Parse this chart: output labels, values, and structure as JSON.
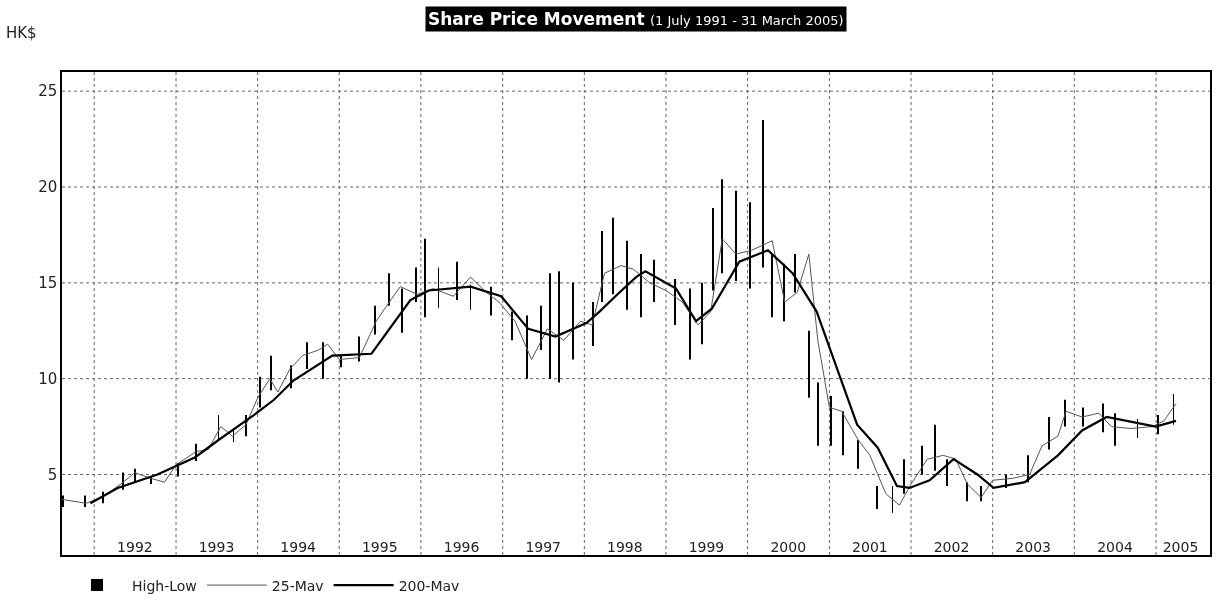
{
  "chart_data": {
    "type": "line",
    "title": "Share Price Movement",
    "subtitle": "(1 July 1991 - 31 March 2005)",
    "ylabel": "HK$",
    "xlim": [
      "1991-08-10",
      "2005-08-30"
    ],
    "ylim": [
      0.8,
      26
    ],
    "yticks": [
      5,
      10,
      15,
      20,
      25
    ],
    "xticks": [
      {
        "value": "1992-01-01",
        "label": null
      },
      {
        "value": "1992-07-01",
        "label": "1992"
      },
      {
        "value": "1993-01-01",
        "label": null
      },
      {
        "value": "1993-07-01",
        "label": "1993"
      },
      {
        "value": "1994-01-01",
        "label": null
      },
      {
        "value": "1994-07-01",
        "label": "1994"
      },
      {
        "value": "1995-01-01",
        "label": null
      },
      {
        "value": "1995-07-01",
        "label": "1995"
      },
      {
        "value": "1996-01-01",
        "label": null
      },
      {
        "value": "1996-07-01",
        "label": "1996"
      },
      {
        "value": "1997-01-01",
        "label": null
      },
      {
        "value": "1997-07-01",
        "label": "1997"
      },
      {
        "value": "1998-01-01",
        "label": null
      },
      {
        "value": "1998-07-01",
        "label": "1998"
      },
      {
        "value": "1999-01-01",
        "label": null
      },
      {
        "value": "1999-07-01",
        "label": "1999"
      },
      {
        "value": "2000-01-01",
        "label": null
      },
      {
        "value": "2000-07-01",
        "label": "2000"
      },
      {
        "value": "2001-01-01",
        "label": null
      },
      {
        "value": "2001-07-01",
        "label": "2001"
      },
      {
        "value": "2002-01-01",
        "label": null
      },
      {
        "value": "2002-07-01",
        "label": "2002"
      },
      {
        "value": "2003-01-01",
        "label": null
      },
      {
        "value": "2003-07-01",
        "label": "2003"
      },
      {
        "value": "2004-01-01",
        "label": null
      },
      {
        "value": "2004-07-01",
        "label": "2004"
      },
      {
        "value": "2005-01-01",
        "label": null
      },
      {
        "value": "2005-04-20",
        "label": "2005"
      }
    ],
    "grid": true,
    "legend": "bottom left",
    "series": [
      {
        "name": "High-Low",
        "type": "bar",
        "color": "#000000",
        "x": [
          "1991-08-15",
          "1991-11-20",
          "1992-02-10",
          "1992-05-10",
          "1992-07-01",
          "1992-09-10",
          "1993-01-10",
          "1993-04-01",
          "1993-07-10",
          "1993-09-15",
          "1993-11-10",
          "1994-01-10",
          "1994-03-01",
          "1994-06-01",
          "1994-08-10",
          "1994-10-20",
          "1995-01-10",
          "1995-04-01",
          "1995-06-10",
          "1995-08-10",
          "1995-10-10",
          "1995-12-10",
          "1996-01-20",
          "1996-03-20",
          "1996-06-10",
          "1996-08-10",
          "1996-11-10",
          "1997-02-10",
          "1997-04-20",
          "1997-06-20",
          "1997-08-01",
          "1997-09-10",
          "1997-11-10",
          "1998-02-10",
          "1998-03-20",
          "1998-05-10",
          "1998-07-10",
          "1998-09-10",
          "1998-11-10",
          "1999-02-10",
          "1999-04-20",
          "1999-06-10",
          "1999-08-01",
          "1999-09-10",
          "1999-11-10",
          "2000-01-10",
          "2000-03-10",
          "2000-04-20",
          "2000-06-10",
          "2000-08-01",
          "2000-10-01",
          "2000-11-10",
          "2001-01-10",
          "2001-03-01",
          "2001-05-10",
          "2001-08-01",
          "2001-10-10",
          "2001-12-01",
          "2002-02-20",
          "2002-04-20",
          "2002-06-10",
          "2002-09-10",
          "2002-11-10",
          "2003-03-01",
          "2003-06-10",
          "2003-09-10",
          "2003-11-20",
          "2004-02-10",
          "2004-05-10",
          "2004-07-01",
          "2004-10-10",
          "2005-01-10",
          "2005-03-20"
        ],
        "base": [
          3.3,
          3.3,
          3.5,
          4.2,
          4.6,
          4.5,
          4.9,
          5.7,
          6.8,
          6.7,
          7.0,
          8.5,
          9.4,
          9.5,
          10.5,
          10.0,
          10.6,
          10.9,
          12.3,
          13.8,
          12.4,
          14.0,
          13.2,
          13.7,
          14.1,
          13.6,
          13.3,
          12.0,
          10.0,
          11.5,
          10.0,
          9.8,
          11.0,
          11.7,
          14.0,
          14.4,
          13.6,
          13.2,
          14.0,
          12.8,
          11.0,
          11.8,
          14.6,
          15.5,
          15.1,
          14.7,
          15.8,
          13.2,
          13.0,
          14.5,
          9.0,
          6.5,
          6.5,
          6.0,
          5.3,
          3.2,
          3.0,
          4.0,
          5.0,
          5.2,
          4.4,
          3.6,
          3.6,
          4.3,
          4.6,
          6.3,
          7.5,
          7.5,
          7.2,
          6.5,
          6.9,
          7.1,
          7.6
        ],
        "values": [
          0.6,
          0.6,
          0.6,
          0.9,
          0.7,
          0.4,
          0.7,
          0.9,
          1.3,
          0.7,
          1.1,
          1.6,
          1.8,
          1.2,
          1.4,
          1.9,
          0.6,
          1.3,
          1.5,
          1.7,
          2.3,
          1.8,
          4.1,
          2.1,
          2.0,
          1.3,
          1.5,
          1.5,
          3.3,
          2.3,
          5.5,
          5.8,
          4.0,
          2.3,
          3.7,
          4.0,
          3.6,
          3.3,
          2.2,
          2.4,
          3.7,
          3.2,
          4.3,
          4.9,
          4.7,
          4.5,
          7.7,
          3.3,
          3.0,
          2.0,
          3.5,
          3.3,
          2.6,
          2.3,
          1.5,
          1.2,
          1.4,
          1.8,
          1.5,
          2.4,
          1.4,
          1.0,
          0.8,
          0.7,
          1.4,
          1.7,
          1.4,
          1.0,
          1.5,
          1.7,
          1.0,
          1.0,
          1.6
        ]
      },
      {
        "name": "25-Mav",
        "color": "#555555",
        "x": [
          "1991-08-10",
          "1991-11-25",
          "1992-02-05",
          "1992-05-10",
          "1992-07-01",
          "1992-09-10",
          "1992-11-10",
          "1993-01-01",
          "1993-04-01",
          "1993-05-25",
          "1993-07-20",
          "1993-09-10",
          "1993-11-10",
          "1994-01-01",
          "1994-02-25",
          "1994-04-01",
          "1994-05-25",
          "1994-07-20",
          "1994-10-01",
          "1994-11-10",
          "1995-01-01",
          "1995-04-01",
          "1995-06-15",
          "1995-08-25",
          "1995-10-01",
          "1995-12-15",
          "1996-02-25",
          "1996-05-25",
          "1996-08-10",
          "1996-10-20",
          "1996-12-15",
          "1997-02-25",
          "1997-05-10",
          "1997-07-20",
          "1997-10-01",
          "1997-12-15",
          "1998-02-05",
          "1998-04-01",
          "1998-06-15",
          "1998-08-10",
          "1998-10-20",
          "1999-01-01",
          "1999-03-15",
          "1999-05-25",
          "1999-07-20",
          "1999-09-10",
          "1999-11-10",
          "2000-01-20",
          "2000-04-20",
          "2000-06-15",
          "2000-08-10",
          "2000-10-01",
          "2000-11-10",
          "2001-01-01",
          "2001-02-25",
          "2001-05-10",
          "2001-07-01",
          "2001-09-10",
          "2001-11-10",
          "2002-01-01",
          "2002-03-15",
          "2002-05-25",
          "2002-07-20",
          "2002-09-10",
          "2002-11-10",
          "2003-01-01",
          "2003-04-01",
          "2003-06-15",
          "2003-08-10",
          "2003-10-20",
          "2003-11-25",
          "2004-02-05",
          "2004-04-20",
          "2004-06-15",
          "2004-09-10",
          "2004-12-15",
          "2005-02-05",
          "2005-03-31"
        ],
        "values": [
          3.7,
          3.5,
          3.8,
          4.6,
          5.1,
          4.8,
          4.6,
          5.5,
          6.2,
          6.3,
          7.5,
          7.0,
          7.6,
          9.0,
          10.0,
          9.3,
          10.5,
          11.2,
          11.5,
          11.8,
          11.0,
          11.1,
          13.0,
          14.2,
          14.8,
          14.4,
          14.7,
          14.3,
          15.3,
          14.5,
          14.0,
          13.0,
          11.0,
          12.6,
          12.0,
          13.0,
          12.8,
          15.5,
          15.9,
          15.7,
          15.0,
          14.6,
          14.0,
          12.8,
          13.5,
          17.3,
          16.5,
          16.7,
          17.2,
          14.0,
          14.5,
          16.5,
          12.0,
          8.5,
          8.3,
          6.8,
          6.0,
          4.0,
          3.4,
          4.5,
          5.8,
          6.0,
          5.8,
          4.5,
          3.8,
          4.7,
          4.8,
          5.0,
          6.5,
          7.0,
          8.3,
          8.0,
          8.2,
          7.5,
          7.4,
          7.5,
          7.8,
          8.7
        ]
      },
      {
        "name": "200-Mav",
        "color": "#000000",
        "x": [
          "1991-12-15",
          "1992-04-15",
          "1992-10-10",
          "1993-03-28",
          "1993-07-10",
          "1993-12-15",
          "1994-03-15",
          "1994-06-10",
          "1994-12-01",
          "1995-05-25",
          "1995-11-15",
          "1996-02-05",
          "1996-08-10",
          "1996-12-25",
          "1997-04-25",
          "1997-08-25",
          "1998-01-10",
          "1998-03-10",
          "1998-05-20",
          "1998-08-20",
          "1998-10-01",
          "1999-02-15",
          "1999-05-15",
          "1999-07-25",
          "1999-11-25",
          "2000-04-01",
          "2000-07-20",
          "2000-11-05",
          "2001-02-20",
          "2001-05-05",
          "2001-08-05",
          "2001-10-30",
          "2001-12-25",
          "2002-03-25",
          "2002-07-10",
          "2002-10-25",
          "2003-01-05",
          "2003-05-25",
          "2003-10-20",
          "2004-02-05",
          "2004-05-25",
          "2004-12-30",
          "2005-03-31"
        ],
        "values": [
          3.5,
          4.3,
          5.0,
          5.9,
          6.8,
          8.1,
          8.9,
          9.9,
          11.2,
          11.3,
          14.1,
          14.6,
          14.8,
          14.3,
          12.6,
          12.2,
          12.9,
          13.5,
          14.3,
          15.3,
          15.6,
          14.7,
          13.0,
          13.65,
          16.1,
          16.7,
          15.5,
          13.5,
          10.0,
          7.6,
          6.4,
          4.4,
          4.3,
          4.7,
          5.8,
          5.0,
          4.3,
          4.6,
          6.0,
          7.3,
          8.0,
          7.5,
          7.8
        ]
      }
    ]
  }
}
